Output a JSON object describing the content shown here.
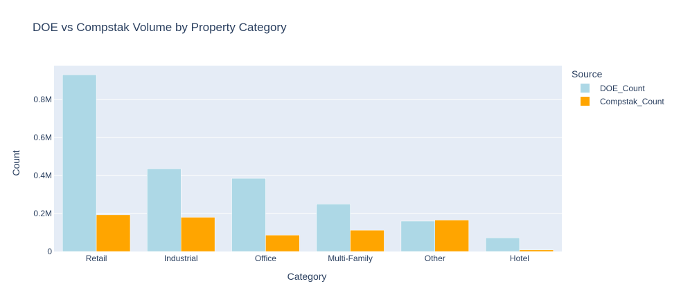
{
  "chart_data": {
    "type": "bar",
    "title": "DOE vs Compstak Volume by Property Category",
    "xlabel": "Category",
    "ylabel": "Count",
    "categories": [
      "Retail",
      "Industrial",
      "Office",
      "Multi-Family",
      "Other",
      "Hotel"
    ],
    "series": [
      {
        "name": "DOE_Count",
        "color": "#add8e6",
        "values": [
          930000,
          435000,
          385000,
          250000,
          160000,
          72000
        ]
      },
      {
        "name": "Compstak_Count",
        "color": "#ffa500",
        "values": [
          193000,
          180000,
          86000,
          112000,
          165000,
          8000
        ]
      }
    ],
    "ylim": [
      0,
      978000
    ],
    "yticks": [
      0,
      200000,
      400000,
      600000,
      800000
    ],
    "ytick_labels": [
      "0",
      "0.2M",
      "0.4M",
      "0.6M",
      "0.8M"
    ],
    "legend_title": "Source",
    "legend_position": "right",
    "grid": true,
    "plot_bgcolor": "#e5ecf6",
    "grid_color": "#ffffff"
  }
}
